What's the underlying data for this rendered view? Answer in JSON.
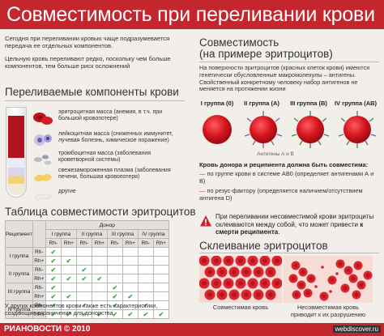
{
  "title": "Совместимость при переливании крови",
  "intro": {
    "p1": "Сегодня при переливании кровью чаще подразумевается передача ее отдельных компонентов.",
    "p2": "Цельную кровь переливают редко, поскольку чем больше компонентов, тем больше риск осложнений"
  },
  "components": {
    "heading": "Переливаемые компоненты крови",
    "items": [
      {
        "label": "эритроцитная масса (анемия, в т.ч. при большой кровопотере)",
        "icon": "red-cells-icon"
      },
      {
        "label": "лейкоцитная масса (сниженных иммунитет, лучевая болезнь, химическое поражение)",
        "icon": "white-cells-icon"
      },
      {
        "label": "тромбоцитная масса (заболевания кроветворной системы)",
        "icon": "platelets-icon"
      },
      {
        "label": "свежезамороженная плазма (заболевания печени, большая кровопотеря)",
        "icon": "plasma-icon"
      },
      {
        "label": "другие",
        "icon": "other-icon"
      }
    ]
  },
  "table": {
    "heading": "Таблица совместимости эритроцитов",
    "recipient_label": "Реципиент",
    "donor_label": "Донор",
    "groups": [
      "I группа",
      "II группа",
      "III группа",
      "IV группа"
    ],
    "rh": [
      "Rh-",
      "Rh+"
    ],
    "row_groups": [
      "I группа",
      "II группа",
      "III группа",
      "IV группа"
    ],
    "check": "✔",
    "matrix": [
      [
        1,
        0,
        0,
        0,
        0,
        0,
        0,
        0
      ],
      [
        1,
        1,
        0,
        0,
        0,
        0,
        0,
        0
      ],
      [
        1,
        0,
        1,
        0,
        0,
        0,
        0,
        0
      ],
      [
        1,
        1,
        1,
        1,
        0,
        0,
        0,
        0
      ],
      [
        1,
        0,
        0,
        0,
        1,
        0,
        0,
        0
      ],
      [
        1,
        1,
        0,
        0,
        1,
        1,
        0,
        0
      ],
      [
        1,
        0,
        1,
        0,
        1,
        0,
        1,
        0
      ],
      [
        1,
        1,
        1,
        1,
        1,
        1,
        1,
        1
      ]
    ]
  },
  "note": "У других компонентов крови также есть характеристики, создающие ограничения для донорства",
  "example": {
    "heading_line1": "Совместимость",
    "heading_line2": "(на примере эритроцитов)",
    "text": "На поверхности эритроцитов (красных клеток крови) имеются генетически обусловленные макромолекулы – антигены. Свойственный конкретному человеку набор антигенов не меняется на протяжении жизни",
    "groups": [
      "I группа (0)",
      "II группа (A)",
      "III группа (B)",
      "IV группа (AB)"
    ],
    "antigen_label": "Антигены А и В",
    "must_match": "Кровь донора и реципиента должна быть совместима:",
    "bullets": [
      "по группе крови в системе АВ0 (определяет антигенами А и В)",
      "по резус-фактору (определяется наличием/отсутствием антигена D)"
    ]
  },
  "warning": {
    "text_plain": "При переливании несовместимой крови эритроциты склеиваются между собой, что может привести ",
    "text_bold": "к смерти реципиента",
    "text_end": "."
  },
  "agglutination": {
    "heading": "Склеивание эритроцитов",
    "cap1": "Совместимая кровь",
    "cap2_line1": "Несовместимая кровь",
    "cap2_line2": "приводит к их разрушению"
  },
  "footer": {
    "brand": "РИАНОВОСТИ © 2010",
    "url": "webdiscover.ru"
  },
  "colors": {
    "accent": "#c4262e",
    "check": "#4aa64a"
  }
}
